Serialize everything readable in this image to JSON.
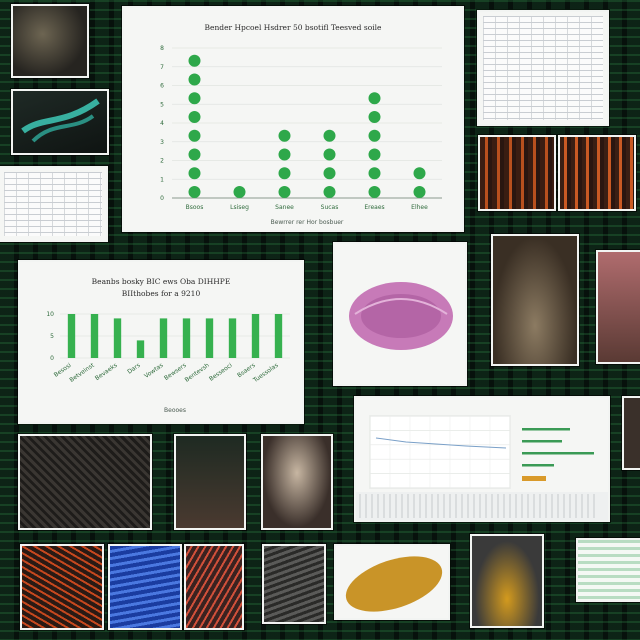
{
  "chart_data": [
    {
      "type": "scatter",
      "title": "Bender Hpcoel Hsdrer 50 bsotifl Teesved soile",
      "xlabel": "Bewrrer rer Hor bosbuer",
      "ylabel": "",
      "ylim": [
        0,
        8
      ],
      "yticks": [
        "0",
        "1",
        "2",
        "3",
        "4",
        "5",
        "6",
        "7",
        "8"
      ],
      "categories": [
        "Bsoos",
        "Lsiseg",
        "Sanee",
        "Sucas",
        "Ereaes",
        "Elhee"
      ],
      "values": [
        8,
        1,
        4,
        4,
        6,
        2
      ],
      "colors": [
        "#2ea84a"
      ]
    },
    {
      "type": "bar",
      "title": "Beanbs bosky BIC ews Oba DIHHPE",
      "subtitle": "BIIthobes for a 9210",
      "xlabel": "Beooes",
      "ylabel": "",
      "ylim": [
        0,
        10
      ],
      "yticks": [
        "0",
        "5",
        "10"
      ],
      "categories": [
        "Besosi",
        "Betveinst",
        "Bevaeks",
        "Dars",
        "Vowtas",
        "Bewsers",
        "Bentevsh",
        "Besseoci",
        "Bsaers",
        "Tuessolas"
      ],
      "values": [
        10,
        10,
        9,
        4,
        9,
        9,
        9,
        9,
        10,
        10
      ],
      "colors": [
        "#36b14f"
      ]
    },
    {
      "type": "bar",
      "title": "",
      "xlabel": "",
      "ylabel": "",
      "categories": [
        "",
        "",
        "",
        "",
        ""
      ],
      "values": [
        6,
        5,
        9,
        4,
        3
      ],
      "colors": [
        "#3a9a55",
        "#d99a2a"
      ]
    }
  ]
}
